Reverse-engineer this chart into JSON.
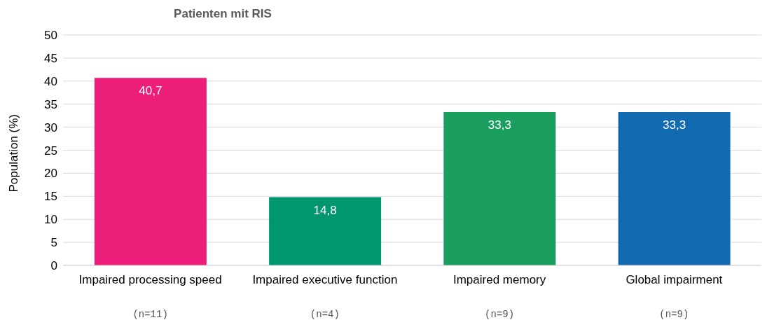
{
  "chart_data": {
    "type": "bar",
    "title": "Patienten mit RIS",
    "ylabel": "Population (%)",
    "categories": [
      "Impaired processing speed",
      "Impaired executive function",
      "Impaired memory",
      "Global impairment"
    ],
    "values": [
      40.7,
      14.8,
      33.3,
      33.3
    ],
    "colors": [
      "#ec1e79",
      "#009670",
      "#1a9e5e",
      "#126bb0"
    ],
    "value_labels": [
      "40,7",
      "14,8",
      "33,3",
      "33,3"
    ],
    "ylim": [
      0,
      50
    ],
    "yticks": [
      0,
      5,
      10,
      15,
      20,
      25,
      30,
      35,
      40,
      45,
      50
    ],
    "grid": "y",
    "legend": false,
    "annotations": [
      "(n=11)",
      "(n=4)",
      "(n=9)",
      "(n=9)"
    ]
  }
}
